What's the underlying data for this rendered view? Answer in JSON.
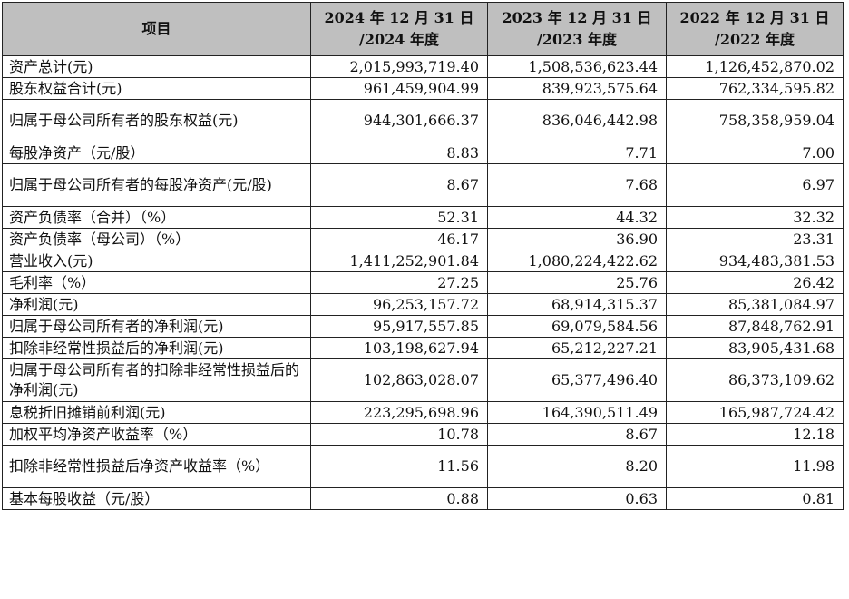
{
  "table": {
    "headers": [
      {
        "line1": "项目",
        "line2": ""
      },
      {
        "line1": "2024 年 12 月 31 日",
        "line2": "/2024 年度"
      },
      {
        "line1": "2023 年 12 月 31 日",
        "line2": "/2023 年度"
      },
      {
        "line1": "2022 年 12 月 31 日",
        "line2": "/2022 年度"
      }
    ],
    "rows": [
      {
        "label": "资产总计(元)",
        "v2024": "2,015,993,719.40",
        "v2023": "1,508,536,623.44",
        "v2022": "1,126,452,870.02"
      },
      {
        "label": "股东权益合计(元)",
        "v2024": "961,459,904.99",
        "v2023": "839,923,575.64",
        "v2022": "762,334,595.82"
      },
      {
        "label": "归属于母公司所有者的股东权益(元)",
        "v2024": "944,301,666.37",
        "v2023": "836,046,442.98",
        "v2022": "758,358,959.04"
      },
      {
        "label": "每股净资产（元/股）",
        "v2024": "8.83",
        "v2023": "7.71",
        "v2022": "7.00"
      },
      {
        "label": "归属于母公司所有者的每股净资产(元/股)",
        "v2024": "8.67",
        "v2023": "7.68",
        "v2022": "6.97"
      },
      {
        "label": "资产负债率（合并）（%）",
        "v2024": "52.31",
        "v2023": "44.32",
        "v2022": "32.32"
      },
      {
        "label": "资产负债率（母公司）（%）",
        "v2024": "46.17",
        "v2023": "36.90",
        "v2022": "23.31"
      },
      {
        "label": "营业收入(元)",
        "v2024": "1,411,252,901.84",
        "v2023": "1,080,224,422.62",
        "v2022": "934,483,381.53"
      },
      {
        "label": "毛利率（%）",
        "v2024": "27.25",
        "v2023": "25.76",
        "v2022": "26.42"
      },
      {
        "label": "净利润(元)",
        "v2024": "96,253,157.72",
        "v2023": "68,914,315.37",
        "v2022": "85,381,084.97"
      },
      {
        "label": "归属于母公司所有者的净利润(元)",
        "v2024": "95,917,557.85",
        "v2023": "69,079,584.56",
        "v2022": "87,848,762.91"
      },
      {
        "label": "扣除非经常性损益后的净利润(元)",
        "v2024": "103,198,627.94",
        "v2023": "65,212,227.21",
        "v2022": "83,905,431.68"
      },
      {
        "label": "归属于母公司所有者的扣除非经常性损益后的净利润(元)",
        "v2024": "102,863,028.07",
        "v2023": "65,377,496.40",
        "v2022": "86,373,109.62"
      },
      {
        "label": "息税折旧摊销前利润(元)",
        "v2024": "223,295,698.96",
        "v2023": "164,390,511.49",
        "v2022": "165,987,724.42"
      },
      {
        "label": "加权平均净资产收益率（%）",
        "v2024": "10.78",
        "v2023": "8.67",
        "v2022": "12.18"
      },
      {
        "label": "扣除非经常性损益后净资产收益率（%）",
        "v2024": "11.56",
        "v2023": "8.20",
        "v2022": "11.98"
      },
      {
        "label": "基本每股收益（元/股）",
        "v2024": "0.88",
        "v2023": "0.63",
        "v2022": "0.81"
      }
    ]
  }
}
